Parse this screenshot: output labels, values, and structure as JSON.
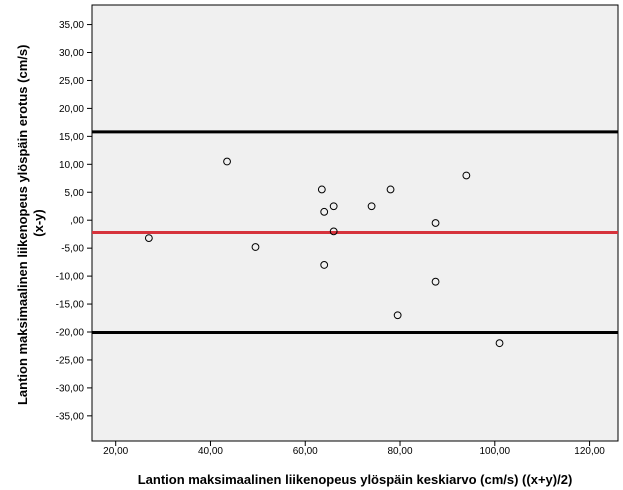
{
  "chart_data": {
    "type": "scatter",
    "title": "",
    "xlabel": "Lantion maksimaalinen liikenopeus ylöspäin keskiarvo (cm/s) ((x+y)/2)",
    "ylabel_lines": [
      "Lantion maksimaalinen liikenopeus ylöspäin erotus (cm/s)",
      "(x-y)"
    ],
    "xlim": [
      15,
      126
    ],
    "ylim": [
      -39.5,
      38.5
    ],
    "x_ticks": [
      20,
      40,
      60,
      80,
      100,
      120
    ],
    "x_tick_labels": [
      "20,00",
      "40,00",
      "60,00",
      "80,00",
      "100,00",
      "120,00"
    ],
    "y_ticks": [
      35,
      30,
      25,
      20,
      15,
      10,
      5,
      0,
      -5,
      -10,
      -15,
      -20,
      -25,
      -30,
      -35
    ],
    "y_tick_labels": [
      "35,00",
      "30,00",
      "25,00",
      "20,00",
      "15,00",
      "10,00",
      "5,00",
      ",00",
      "-5,00",
      "-10,00",
      "-15,00",
      "-20,00",
      "-25,00",
      "-30,00",
      "-35,00"
    ],
    "points": [
      {
        "x": 27.0,
        "y": -3.2
      },
      {
        "x": 43.5,
        "y": 10.5
      },
      {
        "x": 49.5,
        "y": -4.8
      },
      {
        "x": 63.5,
        "y": 5.5
      },
      {
        "x": 64.0,
        "y": 1.5
      },
      {
        "x": 64.0,
        "y": -8.0
      },
      {
        "x": 66.0,
        "y": 2.5
      },
      {
        "x": 66.0,
        "y": -2.0
      },
      {
        "x": 74.0,
        "y": 2.5
      },
      {
        "x": 78.0,
        "y": 5.5
      },
      {
        "x": 79.5,
        "y": -17.0
      },
      {
        "x": 87.5,
        "y": -0.5
      },
      {
        "x": 87.5,
        "y": -11.0
      },
      {
        "x": 94.0,
        "y": 8.0
      },
      {
        "x": 101.0,
        "y": -22.0
      }
    ],
    "reference_lines": [
      {
        "kind": "upper-limit",
        "y": 15.8,
        "color": "#000000"
      },
      {
        "kind": "mean",
        "y": -2.2,
        "color": "#d6333c"
      },
      {
        "kind": "lower-limit",
        "y": -20.1,
        "color": "#000000"
      }
    ],
    "grid": false,
    "legend": "none",
    "plot_background": "#f0f0f0"
  }
}
